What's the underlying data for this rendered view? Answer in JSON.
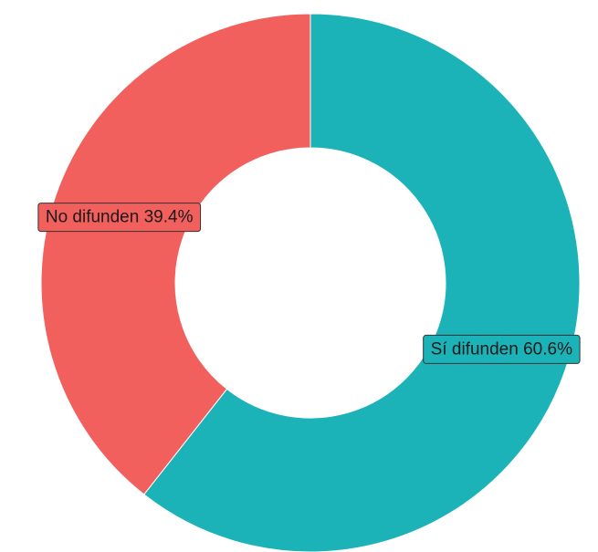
{
  "chart_data": {
    "type": "donut",
    "categories": [
      "Sí difunden",
      "No difunden"
    ],
    "values": [
      60.6,
      39.4
    ],
    "value_labels": [
      "60.6%",
      "39.4%"
    ],
    "colors": [
      "#1bb3b8",
      "#f2605e"
    ]
  }
}
